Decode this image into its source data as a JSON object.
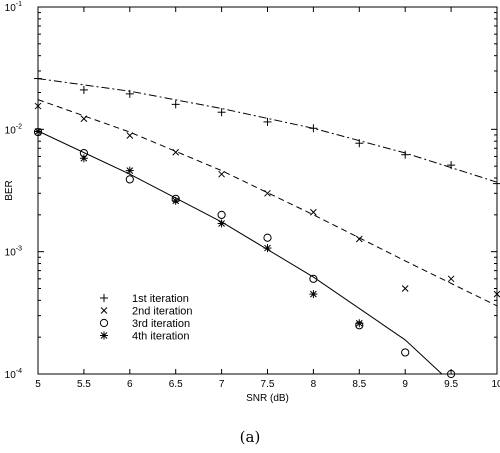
{
  "caption": "(a)",
  "chart_data": {
    "type": "line",
    "xlabel": "SNR (dB)",
    "ylabel": "BER",
    "xlim": [
      5,
      10
    ],
    "ylim": [
      0.0001,
      0.1
    ],
    "yscale": "log",
    "grid": false,
    "legend_position": "lower-left",
    "x_ticks": [
      "5",
      "5.5",
      "6",
      "6.5",
      "7",
      "7.5",
      "8",
      "8.5",
      "9",
      "9.5",
      "10"
    ],
    "y_ticks": [
      {
        "value": 0.1,
        "base": "10",
        "exp": "-1"
      },
      {
        "value": 0.01,
        "base": "10",
        "exp": "-2"
      },
      {
        "value": 0.001,
        "base": "10",
        "exp": "-3"
      },
      {
        "value": 0.0001,
        "base": "10",
        "exp": "-4"
      }
    ],
    "series": [
      {
        "name": "1st iteration",
        "marker": "plus",
        "line_style": "dashdot",
        "points": [
          [
            5,
            0.026
          ],
          [
            5.5,
            0.021
          ],
          [
            6,
            0.0195
          ],
          [
            6.5,
            0.016
          ],
          [
            7,
            0.0138
          ],
          [
            7.5,
            0.0115
          ],
          [
            8,
            0.0102
          ],
          [
            8.5,
            0.0077
          ],
          [
            9,
            0.0062
          ],
          [
            9.5,
            0.0051
          ],
          [
            10,
            0.0036
          ]
        ],
        "curve": [
          [
            5,
            0.026
          ],
          [
            6,
            0.0205
          ],
          [
            7,
            0.0148
          ],
          [
            8,
            0.0102
          ],
          [
            9,
            0.0064
          ],
          [
            10,
            0.0037
          ]
        ]
      },
      {
        "name": "2nd iteration",
        "marker": "cross",
        "line_style": "dashed",
        "points": [
          [
            5,
            0.0155
          ],
          [
            5.5,
            0.0122
          ],
          [
            6,
            0.0089
          ],
          [
            6.5,
            0.0065
          ],
          [
            7,
            0.0043
          ],
          [
            7.5,
            0.003
          ],
          [
            8,
            0.0021
          ],
          [
            8.5,
            0.00127
          ],
          [
            9,
            0.0005
          ],
          [
            9.5,
            0.0006
          ],
          [
            10,
            0.00045
          ]
        ],
        "curve": [
          [
            5,
            0.0175
          ],
          [
            6,
            0.0095
          ],
          [
            7,
            0.0046
          ],
          [
            8,
            0.002
          ],
          [
            9,
            0.00084
          ],
          [
            10,
            0.00036
          ]
        ]
      },
      {
        "name": "3rd iteration",
        "marker": "circle",
        "line_style": "solid",
        "points": [
          [
            5,
            0.0095
          ],
          [
            5.5,
            0.0064
          ],
          [
            6,
            0.0039
          ],
          [
            6.5,
            0.0027
          ],
          [
            7,
            0.002
          ],
          [
            7.5,
            0.0013
          ],
          [
            8,
            0.0006
          ],
          [
            8.5,
            0.00025
          ],
          [
            9,
            0.00015
          ],
          [
            9.5,
            0.0001
          ]
        ],
        "curve": [
          [
            5,
            0.0097
          ],
          [
            6,
            0.0043
          ],
          [
            7,
            0.00175
          ],
          [
            8,
            0.00062
          ],
          [
            9,
            0.00019
          ],
          [
            9.4,
            0.0001
          ]
        ]
      },
      {
        "name": "4th iteration",
        "marker": "asterisk",
        "line_style": "none",
        "points": [
          [
            5,
            0.0096
          ],
          [
            5.5,
            0.0058
          ],
          [
            6,
            0.0046
          ],
          [
            6.5,
            0.0026
          ],
          [
            7,
            0.0017
          ],
          [
            7.5,
            0.00107
          ],
          [
            8,
            0.00045
          ],
          [
            8.5,
            0.00026
          ]
        ]
      }
    ]
  }
}
